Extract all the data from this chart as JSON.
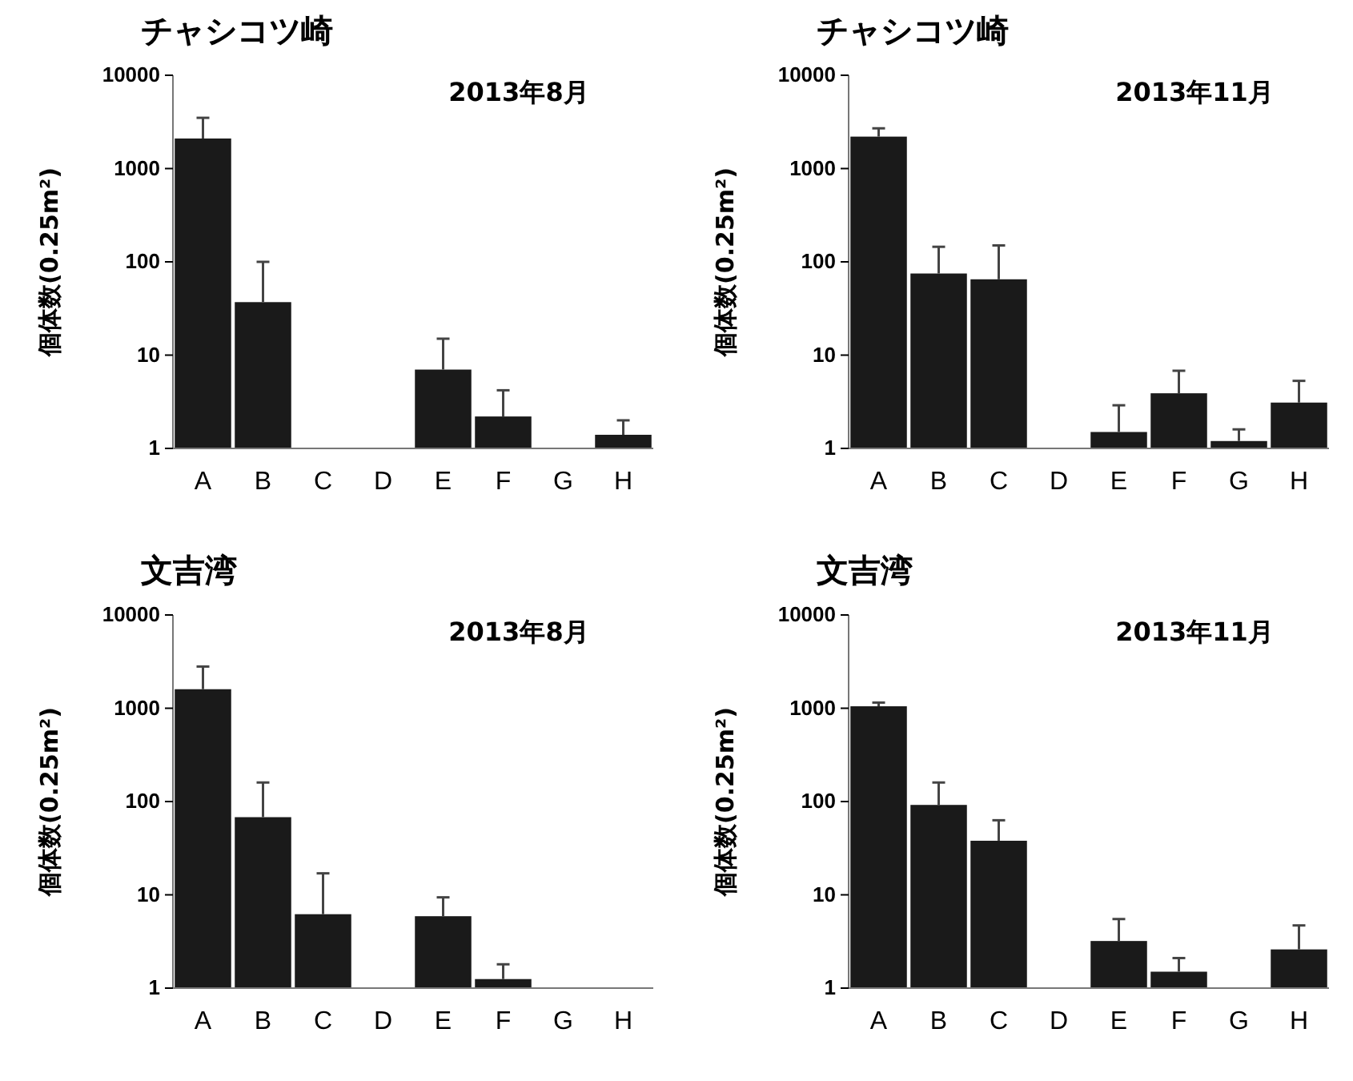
{
  "chart_data": [
    {
      "type": "bar",
      "title": "チャシコツ崎",
      "ylabel": "個体数(0.25m²)",
      "annotations": [
        "2013年8月"
      ],
      "categories": [
        "A",
        "B",
        "C",
        "D",
        "E",
        "F",
        "G",
        "H"
      ],
      "log": true,
      "ylim": [
        1,
        10000
      ],
      "yticks": [
        1,
        10,
        100,
        1000,
        10000
      ],
      "grid": false,
      "series": [
        {
          "color": "#1a1a1a",
          "values": [
            2100,
            37,
            null,
            null,
            7,
            2.2,
            null,
            1.4
          ],
          "errors": [
            [
              2100,
              3500
            ],
            [
              37,
              100
            ],
            null,
            null,
            [
              7,
              15
            ],
            [
              2.2,
              4.2
            ],
            null,
            [
              1.4,
              2.0
            ]
          ]
        }
      ]
    },
    {
      "type": "bar",
      "title": "チャシコツ崎",
      "ylabel": "個体数(0.25m²)",
      "annotations": [
        "2013年11月"
      ],
      "categories": [
        "A",
        "B",
        "C",
        "D",
        "E",
        "F",
        "G",
        "H"
      ],
      "log": true,
      "ylim": [
        1,
        10000
      ],
      "yticks": [
        1,
        10,
        100,
        1000,
        10000
      ],
      "grid": false,
      "series": [
        {
          "color": "#1a1a1a",
          "values": [
            2200,
            75,
            65,
            null,
            1.5,
            3.9,
            1.2,
            3.1
          ],
          "errors": [
            [
              2200,
              2700
            ],
            [
              75,
              145
            ],
            [
              65,
              150
            ],
            null,
            [
              1.5,
              2.9
            ],
            [
              3.9,
              6.8
            ],
            [
              1.2,
              1.6
            ],
            [
              3.1,
              5.3
            ]
          ]
        }
      ]
    },
    {
      "type": "bar",
      "title": "文吉湾",
      "ylabel": "個体数(0.25m²)",
      "annotations": [
        "2013年8月"
      ],
      "categories": [
        "A",
        "B",
        "C",
        "D",
        "E",
        "F",
        "G",
        "H"
      ],
      "log": true,
      "ylim": [
        1,
        10000
      ],
      "yticks": [
        1,
        10,
        100,
        1000,
        10000
      ],
      "grid": false,
      "series": [
        {
          "color": "#1a1a1a",
          "values": [
            1600,
            68,
            6.2,
            null,
            5.9,
            1.25,
            null,
            null
          ],
          "errors": [
            [
              1600,
              2800
            ],
            [
              68,
              160
            ],
            [
              6.2,
              17
            ],
            null,
            [
              5.9,
              9.4
            ],
            [
              1.25,
              1.8
            ],
            null,
            null
          ]
        }
      ]
    },
    {
      "type": "bar",
      "title": "文吉湾",
      "ylabel": "個体数(0.25m²)",
      "annotations": [
        "2013年11月"
      ],
      "categories": [
        "A",
        "B",
        "C",
        "D",
        "E",
        "F",
        "G",
        "H"
      ],
      "log": true,
      "ylim": [
        1,
        10000
      ],
      "yticks": [
        1,
        10,
        100,
        1000,
        10000
      ],
      "grid": false,
      "series": [
        {
          "color": "#1a1a1a",
          "values": [
            1050,
            92,
            38,
            null,
            3.2,
            1.5,
            null,
            2.6
          ],
          "errors": [
            [
              1050,
              1150
            ],
            [
              92,
              160
            ],
            [
              38,
              63
            ],
            null,
            [
              3.2,
              5.5
            ],
            [
              1.5,
              2.1
            ],
            null,
            [
              2.6,
              4.7
            ]
          ]
        }
      ]
    }
  ]
}
